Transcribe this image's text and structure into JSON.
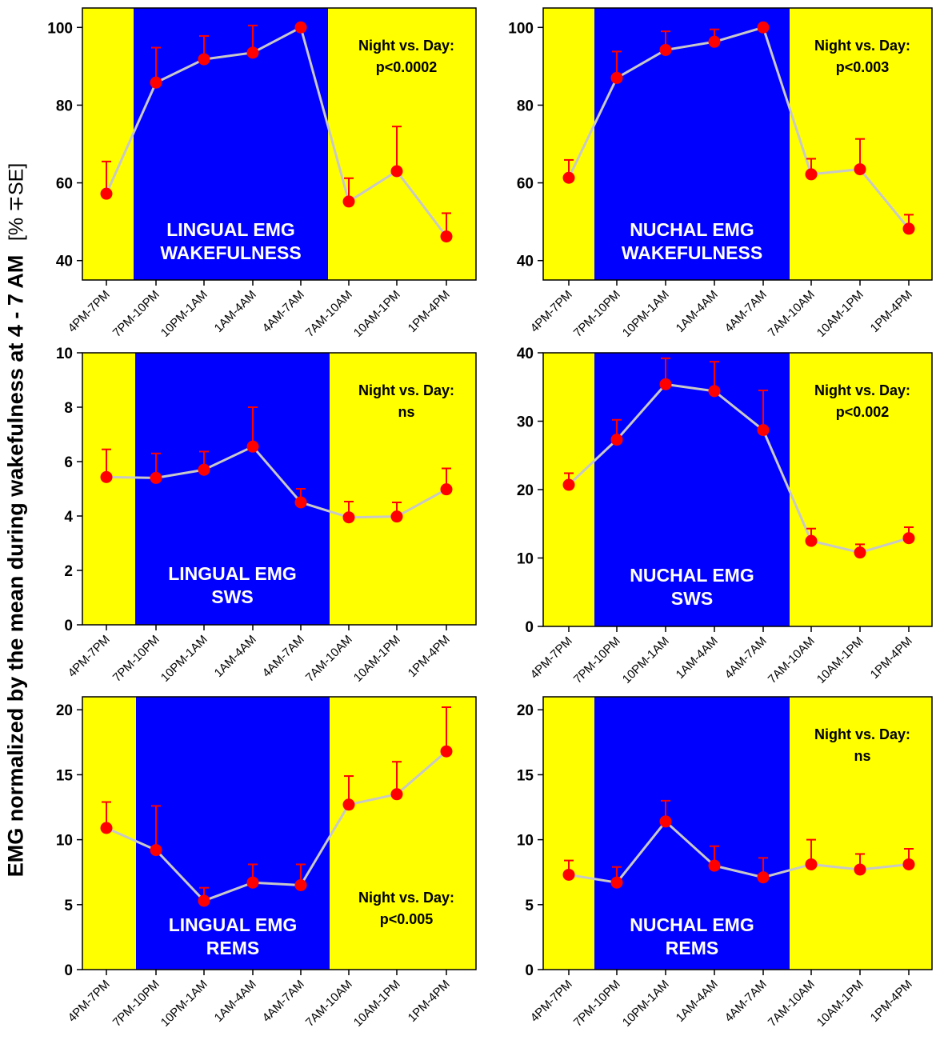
{
  "figure": {
    "ylabel_main": "EMG normalized by the mean during wakefulness  at 4 - 7 AM",
    "ylabel_unit": "[% ∓SE]"
  },
  "chart_data": [
    {
      "type": "line",
      "panel": "lingual-wakefulness",
      "title": "LINGUAL EMG",
      "subtitle": "WAKEFULNESS",
      "categories": [
        "4PM-7PM",
        "7PM-10PM",
        "10PM-1AM",
        "1AM-4AM",
        "4AM-7AM",
        "7AM-10AM",
        "10AM-1PM",
        "1PM-4PM"
      ],
      "values": [
        57.2,
        85.8,
        91.8,
        93.5,
        100,
        55.2,
        63,
        46.2
      ],
      "errors": [
        8.3,
        9,
        6,
        7,
        0,
        6,
        11.5,
        6
      ],
      "ylim": [
        35,
        105
      ],
      "yticks": [
        40,
        60,
        80,
        100
      ],
      "ytick_labels": [
        "40",
        "60",
        "80",
        "100"
      ],
      "annotation": [
        "Night vs. Day:",
        "p<0.0002"
      ],
      "annotation_position": "top-right",
      "night_band": "7PM-10PM to 4AM-7AM"
    },
    {
      "type": "line",
      "panel": "nuchal-wakefulness",
      "title": "NUCHAL EMG",
      "subtitle": "WAKEFULNESS",
      "categories": [
        "4PM-7PM",
        "7PM-10PM",
        "10PM-1AM",
        "1AM-4AM",
        "4AM-7AM",
        "7AM-10AM",
        "10AM-1PM",
        "1PM-4PM"
      ],
      "values": [
        61.3,
        87,
        94.2,
        96.3,
        100,
        62.2,
        63.5,
        48.2
      ],
      "errors": [
        4.6,
        6.8,
        4.8,
        3.2,
        0,
        4,
        7.8,
        3.6
      ],
      "ylim": [
        35,
        105
      ],
      "yticks": [
        40,
        60,
        80,
        100
      ],
      "ytick_labels": [
        "40",
        "60",
        "80",
        "100"
      ],
      "annotation": [
        "Night vs. Day:",
        "p<0.003"
      ],
      "annotation_position": "top-right",
      "night_band": "7PM-10PM to 4AM-7AM"
    },
    {
      "type": "line",
      "panel": "lingual-sws",
      "title": "LINGUAL EMG",
      "subtitle": "SWS",
      "categories": [
        "4PM-7PM",
        "7PM-10PM",
        "10PM-1AM",
        "1AM-4AM",
        "4AM-7AM",
        "7AM-10AM",
        "10AM-1PM",
        "1PM-4PM"
      ],
      "values": [
        5.43,
        5.4,
        5.7,
        6.55,
        4.5,
        3.95,
        3.98,
        4.98
      ],
      "errors": [
        1.02,
        0.9,
        0.67,
        1.45,
        0.5,
        0.58,
        0.52,
        0.77
      ],
      "ylim": [
        0,
        10
      ],
      "yticks": [
        0,
        2,
        4,
        6,
        8,
        10
      ],
      "ytick_labels": [
        "0",
        "2",
        "4",
        "6",
        "8",
        "10"
      ],
      "annotation": [
        "Night vs. Day:",
        "ns"
      ],
      "annotation_position": "top-right",
      "night_band": "7PM-10PM to 4AM-7AM"
    },
    {
      "type": "line",
      "panel": "nuchal-sws",
      "title": "NUCHAL EMG",
      "subtitle": "SWS",
      "categories": [
        "4PM-7PM",
        "7PM-10PM",
        "10PM-1AM",
        "1AM-4AM",
        "4AM-7AM",
        "7AM-10AM",
        "10AM-1PM",
        "1PM-4PM"
      ],
      "values": [
        20.7,
        27.3,
        35.4,
        34.4,
        28.7,
        12.5,
        10.8,
        12.9
      ],
      "errors": [
        1.7,
        2.9,
        3.8,
        4.3,
        5.8,
        1.8,
        1.2,
        1.6
      ],
      "ylim": [
        0,
        40
      ],
      "yticks": [
        0,
        10,
        20,
        30,
        40
      ],
      "ytick_labels": [
        "0",
        "10",
        "20",
        "30",
        "40"
      ],
      "annotation": [
        "Night vs. Day:",
        "p<0.002"
      ],
      "annotation_position": "top-right",
      "night_band": "7PM-10PM to 4AM-7AM"
    },
    {
      "type": "line",
      "panel": "lingual-rems",
      "title": "LINGUAL EMG",
      "subtitle": "REMS",
      "categories": [
        "4PM-7PM",
        "7PM-10PM",
        "10PM-1AM",
        "1AM-4AM",
        "4AM-7AM",
        "7AM-10AM",
        "10AM-1PM",
        "1PM-4PM"
      ],
      "values": [
        10.9,
        9.2,
        5.3,
        6.7,
        6.5,
        12.7,
        13.5,
        16.8
      ],
      "errors": [
        2,
        3.4,
        1,
        1.4,
        1.6,
        2.2,
        2.5,
        3.4
      ],
      "ylim": [
        0,
        21
      ],
      "yticks": [
        0,
        5,
        10,
        15,
        20
      ],
      "ytick_labels": [
        "0",
        "5",
        "10",
        "15",
        "20"
      ],
      "annotation": [
        "Night vs. Day:",
        "p<0.005"
      ],
      "annotation_position": "bottom-right",
      "night_band": "7PM-10PM to 4AM-7AM"
    },
    {
      "type": "line",
      "panel": "nuchal-rems",
      "title": "NUCHAL EMG",
      "subtitle": "REMS",
      "categories": [
        "4PM-7PM",
        "7PM-10PM",
        "10PM-1AM",
        "1AM-4AM",
        "4AM-7AM",
        "7AM-10AM",
        "10AM-1PM",
        "1PM-4PM"
      ],
      "values": [
        7.3,
        6.7,
        11.4,
        8,
        7.1,
        8.1,
        7.7,
        8.1
      ],
      "errors": [
        1.1,
        1.2,
        1.6,
        1.5,
        1.5,
        1.9,
        1.2,
        1.2
      ],
      "ylim": [
        0,
        21
      ],
      "yticks": [
        0,
        5,
        10,
        15,
        20
      ],
      "ytick_labels": [
        "0",
        "5",
        "10",
        "15",
        "20"
      ],
      "annotation": [
        "Night vs. Day:",
        "ns"
      ],
      "annotation_position": "top-right",
      "night_band": "7PM-10PM to 4AM-7AM"
    }
  ],
  "colors": {
    "day": "#ffff00",
    "night": "#0000ff",
    "marker": "#ff0000",
    "line": "#c8c8c8",
    "axis": "#000000",
    "label_on_night": "#ffffff"
  }
}
